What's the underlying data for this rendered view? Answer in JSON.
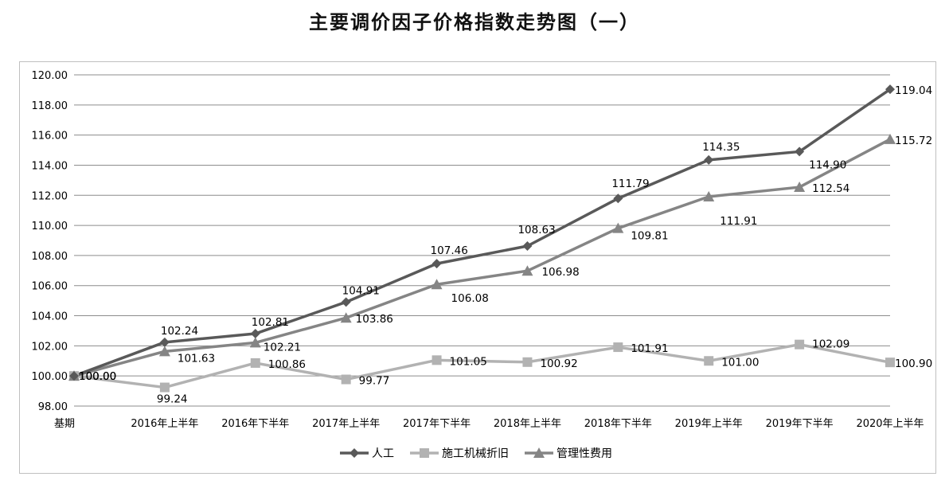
{
  "chart_data": {
    "type": "line",
    "title": "主要调价因子价格指数走势图（一）",
    "categories": [
      "基期",
      "2016年上半年",
      "2016年下半年",
      "2017年上半年",
      "2017年下半年",
      "2018年上半年",
      "2018年下半年",
      "2019年上半年",
      "2019年下半年",
      "2020年上半年"
    ],
    "y_ticks": [
      "98.00",
      "100.00",
      "102.00",
      "104.00",
      "106.00",
      "108.00",
      "110.00",
      "112.00",
      "114.00",
      "116.00",
      "118.00",
      "120.00"
    ],
    "ylim": [
      98,
      120
    ],
    "grid": true,
    "legend_position": "bottom",
    "series": [
      {
        "name": "人工",
        "color": "#595959",
        "marker": "diamond",
        "values": [
          100.0,
          102.24,
          102.81,
          104.91,
          107.46,
          108.63,
          111.79,
          114.35,
          114.9,
          119.04
        ],
        "labels": [
          "100.00",
          "102.24",
          "102.81",
          "104.91",
          "107.46",
          "108.63",
          "111.79",
          "114.35",
          "114.90",
          "119.04"
        ]
      },
      {
        "name": "施工机械折旧",
        "color": "#b2b2b2",
        "marker": "square",
        "values": [
          100.0,
          99.24,
          100.86,
          99.77,
          101.05,
          100.92,
          101.91,
          101.0,
          102.09,
          100.9
        ],
        "labels": [
          "100.00",
          "99.24",
          "100.86",
          "99.77",
          "101.05",
          "100.92",
          "101.91",
          "101.00",
          "102.09",
          "100.90"
        ]
      },
      {
        "name": "管理性费用",
        "color": "#858585",
        "marker": "triangle",
        "values": [
          100.0,
          101.63,
          102.21,
          103.86,
          106.08,
          106.98,
          109.81,
          111.91,
          112.54,
          115.72
        ],
        "labels": [
          "100.00",
          "101.63",
          "102.21",
          "103.86",
          "106.08",
          "106.98",
          "109.81",
          "111.91",
          "112.54",
          "115.72"
        ]
      }
    ]
  }
}
